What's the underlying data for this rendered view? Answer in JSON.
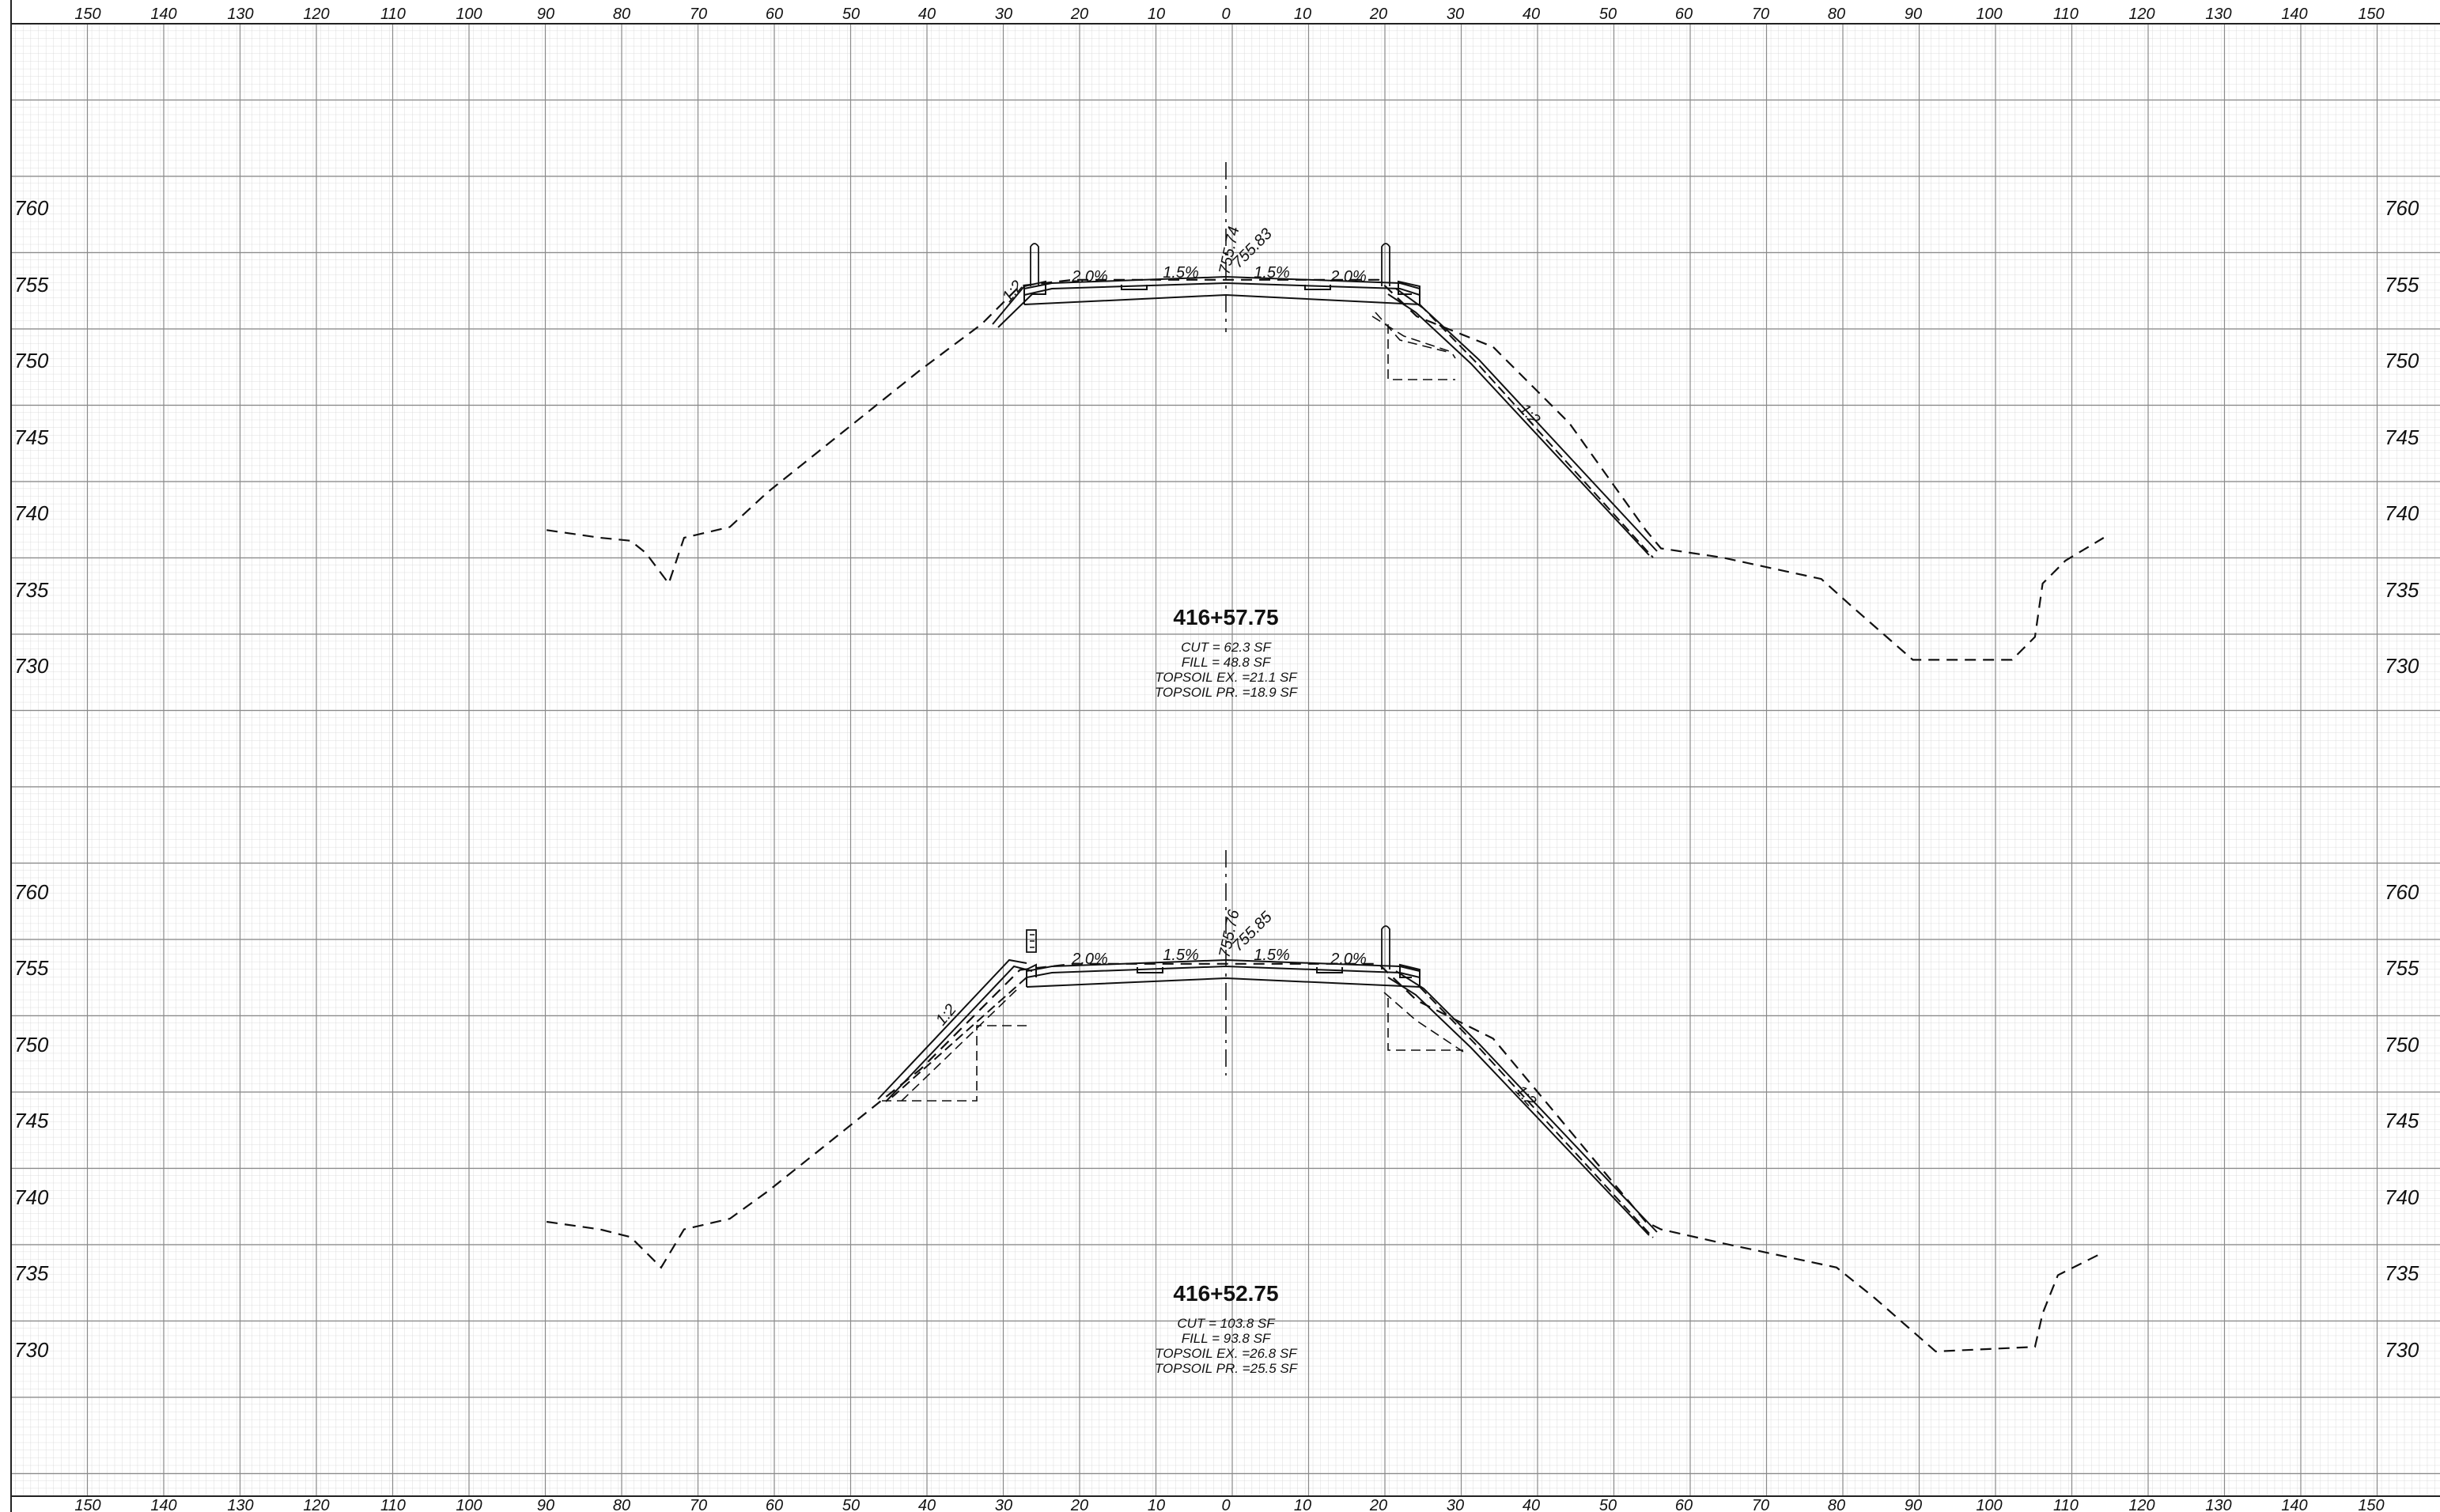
{
  "drawing": {
    "x_axis": {
      "labels": [
        "150",
        "140",
        "130",
        "120",
        "110",
        "100",
        "90",
        "80",
        "70",
        "60",
        "50",
        "40",
        "30",
        "20",
        "10",
        "0",
        "10",
        "20",
        "30",
        "40",
        "50",
        "60",
        "70",
        "80",
        "90",
        "100",
        "110",
        "120",
        "130",
        "140",
        "150"
      ]
    },
    "sections": [
      {
        "station": "416+57.75",
        "elevation_labels": [
          "760",
          "755",
          "750",
          "745",
          "740",
          "735",
          "730"
        ],
        "quantities": [
          "CUT = 62.3 SF",
          "FILL = 48.8 SF",
          "TOPSOIL EX. =21.1 SF",
          "TOPSOIL PR. =18.9 SF"
        ],
        "grades": [
          "2.0%",
          "1.5%",
          "1.5%",
          "2.0%"
        ],
        "elevations": [
          "755.74",
          "755.83"
        ],
        "slopes": [
          "1:2",
          "1:2"
        ],
        "ground_profile": [
          [
            -89,
            739
          ],
          [
            -82,
            738.5
          ],
          [
            -78,
            738.3
          ],
          [
            -76,
            737.5
          ],
          [
            -73,
            735.5
          ],
          [
            -71,
            738.5
          ],
          [
            -65,
            739.2
          ],
          [
            -60,
            741.5
          ],
          [
            -50,
            745.5
          ],
          [
            -40,
            749.5
          ],
          [
            -32,
            752.5
          ],
          [
            -27,
            755
          ],
          [
            -20,
            755.4
          ],
          [
            20,
            755.4
          ],
          [
            25,
            753
          ],
          [
            35,
            751
          ],
          [
            45,
            746
          ],
          [
            55,
            739
          ],
          [
            57,
            737.8
          ],
          [
            65,
            737.2
          ],
          [
            78,
            735.8
          ],
          [
            82,
            734
          ],
          [
            90,
            730.5
          ],
          [
            103,
            730.5
          ],
          [
            106,
            732
          ],
          [
            107,
            735.5
          ],
          [
            110,
            737
          ],
          [
            115,
            738.5
          ]
        ]
      },
      {
        "station": "416+52.75",
        "elevation_labels": [
          "760",
          "755",
          "750",
          "745",
          "740",
          "735",
          "730"
        ],
        "quantities": [
          "CUT = 103.8 SF",
          "FILL = 93.8 SF",
          "TOPSOIL EX. =26.8 SF",
          "TOPSOIL PR. =25.5 SF"
        ],
        "grades": [
          "2.0%",
          "1.5%",
          "1.5%",
          "2.0%"
        ],
        "elevations": [
          "755.76",
          "755.85"
        ],
        "slopes": [
          "1:2",
          "1:2"
        ],
        "ground_profile": [
          [
            -89,
            738.5
          ],
          [
            -82,
            738
          ],
          [
            -78,
            737.5
          ],
          [
            -76,
            736.5
          ],
          [
            -74,
            735.5
          ],
          [
            -71,
            738
          ],
          [
            -65,
            738.7
          ],
          [
            -60,
            740.5
          ],
          [
            -50,
            744.5
          ],
          [
            -40,
            748.5
          ],
          [
            -32,
            752.5
          ],
          [
            -27,
            755
          ],
          [
            -20,
            755.4
          ],
          [
            20,
            755.4
          ],
          [
            25,
            753
          ],
          [
            35,
            750.5
          ],
          [
            45,
            744.5
          ],
          [
            55,
            738.5
          ],
          [
            57,
            738
          ],
          [
            65,
            737.1
          ],
          [
            80,
            735.5
          ],
          [
            85,
            733.5
          ],
          [
            93,
            730
          ],
          [
            106,
            730.3
          ],
          [
            107,
            732.5
          ],
          [
            109,
            735
          ],
          [
            115,
            736.5
          ]
        ]
      }
    ]
  }
}
